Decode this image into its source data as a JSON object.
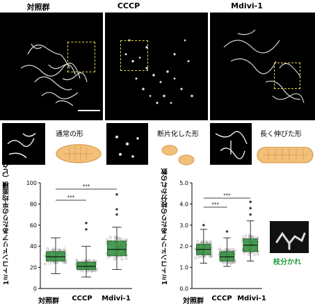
{
  "columns": [
    "対照群",
    "CCCP",
    "Mdivi-1"
  ],
  "shape_labels": [
    "通常の形",
    "断片化した形",
    "長く伸びた形"
  ],
  "branch_label": "枝分かれ",
  "colors": {
    "box_fill": "#2e8b3a",
    "box_dark": "#1f5f27",
    "mito_fill": "#f3c07a",
    "mito_stroke": "#d69a48",
    "branch_label": "#1f9a3a",
    "dash": "#e6d84a"
  },
  "chart_data": [
    {
      "type": "box",
      "ylabel": "1ミトコンドリアあたりの平均面積（ピクセル）",
      "categories": [
        "対照群",
        "CCCP",
        "Mdivi-1"
      ],
      "ylim": [
        0,
        100
      ],
      "yticks": [
        0,
        20,
        40,
        60,
        80,
        100
      ],
      "boxes": [
        {
          "name": "対照群",
          "whisker_low": 14,
          "q1": 26,
          "median": 30,
          "q3": 35,
          "whisker_high": 48
        },
        {
          "name": "CCCP",
          "whisker_low": 11,
          "q1": 18,
          "median": 21,
          "q3": 25,
          "whisker_high": 40
        },
        {
          "name": "Mdivi-1",
          "whisker_low": 18,
          "q1": 31,
          "median": 37,
          "q3": 45,
          "whisker_high": 58
        }
      ],
      "outliers": [
        [
          2,
          70
        ],
        [
          2,
          75
        ],
        [
          2,
          89
        ],
        [
          1,
          56
        ],
        [
          1,
          62
        ]
      ],
      "significance": [
        {
          "from": "対照群",
          "to": "CCCP",
          "label": "***"
        },
        {
          "from": "対照群",
          "to": "Mdivi-1",
          "label": "***"
        }
      ]
    },
    {
      "type": "box",
      "ylabel": "1ミトコンドリアあたりの枝分かれの数",
      "categories": [
        "対照群",
        "CCCP",
        "Mdivi-1"
      ],
      "ylim": [
        0,
        5.0
      ],
      "yticks": [
        "0.0",
        "1.0",
        "2.0",
        "3.0",
        "4.0",
        "5.0"
      ],
      "boxes": [
        {
          "name": "対照群",
          "whisker_low": 1.2,
          "q1": 1.6,
          "median": 1.85,
          "q3": 2.1,
          "whisker_high": 2.8
        },
        {
          "name": "CCCP",
          "whisker_low": 1.05,
          "q1": 1.3,
          "median": 1.5,
          "q3": 1.75,
          "whisker_high": 2.4
        },
        {
          "name": "Mdivi-1",
          "whisker_low": 1.3,
          "q1": 1.75,
          "median": 2.05,
          "q3": 2.35,
          "whisker_high": 3.2
        }
      ],
      "outliers": [
        [
          2,
          3.5
        ],
        [
          2,
          3.8
        ],
        [
          2,
          4.1
        ],
        [
          1,
          2.7
        ],
        [
          0,
          3.0
        ]
      ],
      "significance": [
        {
          "from": "対照群",
          "to": "CCCP",
          "label": "***"
        },
        {
          "from": "対照群",
          "to": "Mdivi-1",
          "label": "***"
        }
      ]
    }
  ]
}
